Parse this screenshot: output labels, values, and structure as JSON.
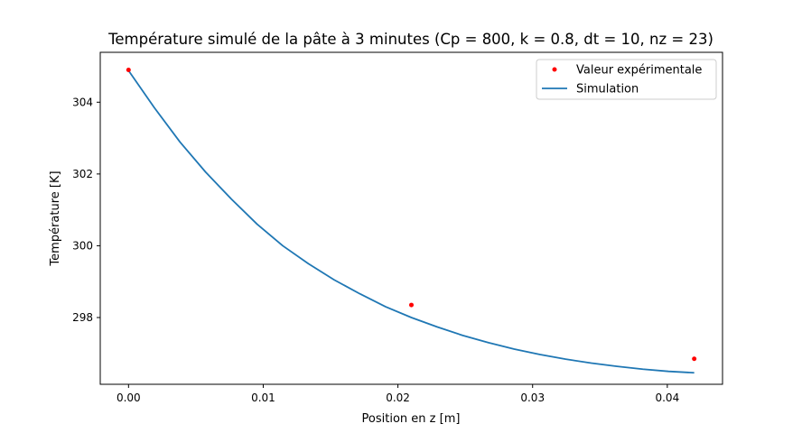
{
  "chart_data": {
    "type": "line",
    "title": "Température simulé de la pâte à 3 minutes (Cp = 800, k = 0.8, dt = 10, nz = 23)",
    "xlabel": "Position en z [m]",
    "ylabel": "Température [K]",
    "xlim": [
      -0.0021,
      0.0441
    ],
    "ylim": [
      296.14,
      305.39
    ],
    "xticks": [
      0.0,
      0.01,
      0.02,
      0.03,
      0.04
    ],
    "xtick_labels": [
      "0.00",
      "0.01",
      "0.02",
      "0.03",
      "0.04"
    ],
    "yticks": [
      298,
      300,
      302,
      304
    ],
    "ytick_labels": [
      "298",
      "300",
      "302",
      "304"
    ],
    "grid": false,
    "legend": {
      "position": "top-right",
      "entries": [
        "Valeur expérimentale",
        "Simulation"
      ]
    },
    "series": [
      {
        "name": "Valeur expérimentale",
        "style": "points",
        "color": "#ff0000",
        "x": [
          0.0,
          0.021,
          0.042
        ],
        "y": [
          304.9,
          298.35,
          296.85
        ]
      },
      {
        "name": "Simulation",
        "style": "line",
        "color": "#1f77b4",
        "x": [
          0.0,
          0.00191,
          0.00382,
          0.00573,
          0.00764,
          0.00955,
          0.01145,
          0.01336,
          0.01527,
          0.01718,
          0.01909,
          0.021,
          0.02291,
          0.02482,
          0.02673,
          0.02864,
          0.03055,
          0.03245,
          0.03436,
          0.03627,
          0.03818,
          0.04009,
          0.042
        ],
        "y": [
          304.88,
          303.85,
          302.89,
          302.05,
          301.3,
          300.6,
          300.0,
          299.5,
          299.05,
          298.66,
          298.3,
          298.0,
          297.74,
          297.5,
          297.3,
          297.12,
          296.97,
          296.84,
          296.73,
          296.64,
          296.56,
          296.5,
          296.46
        ]
      }
    ]
  }
}
